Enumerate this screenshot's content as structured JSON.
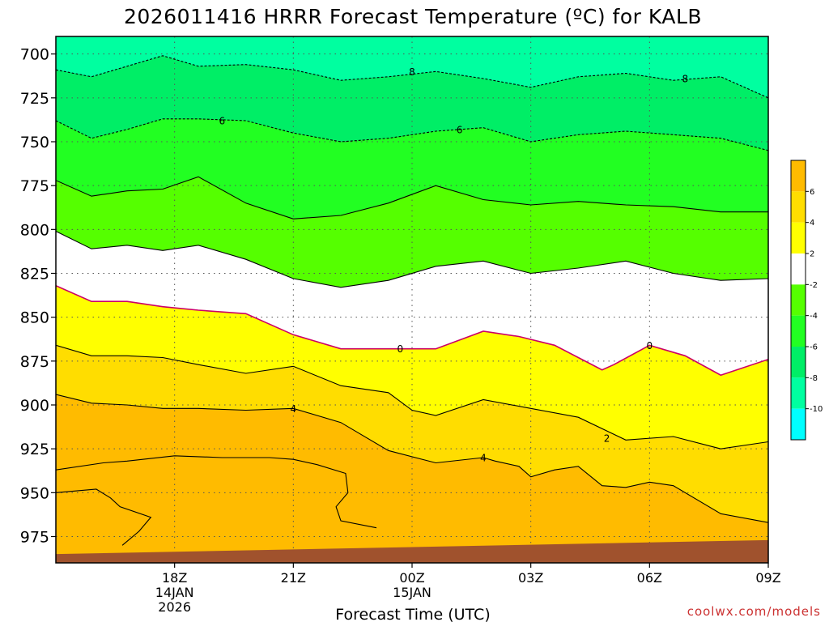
{
  "chart_data": {
    "type": "filled-contour",
    "title": "2026011416 HRRR Forecast Temperature (ºC) for KALB",
    "xlabel": "Forecast Time (UTC)",
    "ylabel": "",
    "y_axis": {
      "units": "hPa",
      "reversed": true,
      "range": [
        990,
        690
      ],
      "ticks": [
        "700",
        "725",
        "750",
        "775",
        "800",
        "825",
        "850",
        "875",
        "900",
        "925",
        "950",
        "975"
      ]
    },
    "x_axis": {
      "range_hours": [
        -3,
        27
      ],
      "ticks": [
        {
          "h": 2,
          "label": "18Z",
          "sub1": "14JAN",
          "sub2": "2026"
        },
        {
          "h": 7,
          "label": "21Z",
          "sub1": "",
          "sub2": ""
        },
        {
          "h": 12,
          "label": "00Z",
          "sub1": "15JAN",
          "sub2": ""
        },
        {
          "h": 17,
          "label": "03Z",
          "sub1": "",
          "sub2": ""
        },
        {
          "h": 22,
          "label": "06Z",
          "sub1": "",
          "sub2": ""
        },
        {
          "h": 27,
          "label": "09Z",
          "sub1": "",
          "sub2": ""
        }
      ]
    },
    "grid": true,
    "surface_color": "#a0522d",
    "surface": {
      "x": [
        -3,
        27
      ],
      "p": [
        985,
        977
      ]
    },
    "bands": [
      {
        "range": "<-10",
        "color": "#00ffff"
      },
      {
        "range": "-10..-8",
        "color": "#00ffa0"
      },
      {
        "range": "-8..-6",
        "color": "#00ee66"
      },
      {
        "range": "-6..-4",
        "color": "#22ff22"
      },
      {
        "range": "-4..-2",
        "color": "#55ff00"
      },
      {
        "range": "-2..2",
        "color": "#ffffff"
      },
      {
        "range": "2..4",
        "color": "#ffff00"
      },
      {
        "range": "4..6",
        "color": "#ffdd00"
      },
      {
        "range": ">6",
        "color": "#ffbb00"
      }
    ],
    "contours": [
      {
        "value": -8,
        "label": "8",
        "dashed": true,
        "color": "#000000",
        "x": [
          -3,
          -1.5,
          0,
          1.5,
          3,
          5,
          7,
          9,
          11,
          13,
          15,
          17,
          19,
          21,
          23,
          25,
          27
        ],
        "p": [
          709,
          713,
          707,
          701,
          707,
          706,
          709,
          715,
          713,
          710,
          714,
          719,
          713,
          711,
          715,
          713,
          725
        ],
        "labels": [
          {
            "x": 12,
            "p": 710
          },
          {
            "x": 23.5,
            "p": 714
          }
        ]
      },
      {
        "value": -6,
        "label": "6",
        "dashed": true,
        "color": "#000000",
        "x": [
          -3,
          -1.5,
          0,
          1.5,
          3,
          5,
          7,
          9,
          11,
          13,
          15,
          17,
          19,
          21,
          23,
          25,
          27
        ],
        "p": [
          738,
          748,
          743,
          737,
          737,
          738,
          745,
          750,
          748,
          744,
          742,
          750,
          746,
          744,
          746,
          748,
          755
        ],
        "labels": [
          {
            "x": 4,
            "p": 738
          },
          {
            "x": 14,
            "p": 743
          }
        ]
      },
      {
        "value": -4,
        "label": "",
        "dashed": false,
        "color": "#000000",
        "x": [
          -3,
          -1.5,
          0,
          1.5,
          3,
          5,
          7,
          9,
          11,
          13,
          15,
          17,
          19,
          21,
          23,
          25,
          27
        ],
        "p": [
          772,
          781,
          778,
          777,
          770,
          785,
          794,
          792,
          785,
          775,
          783,
          786,
          784,
          786,
          787,
          790,
          790
        ],
        "labels": []
      },
      {
        "value": -2,
        "label": "",
        "dashed": false,
        "color": "#000000",
        "x": [
          -3,
          -1.5,
          0,
          1.5,
          3,
          5,
          7,
          9,
          11,
          13,
          15,
          17,
          19,
          21,
          23,
          25,
          27
        ],
        "p": [
          801,
          811,
          809,
          812,
          809,
          817,
          828,
          833,
          829,
          821,
          818,
          825,
          822,
          818,
          825,
          829,
          828
        ],
        "labels": []
      },
      {
        "value": 0,
        "label": "0",
        "dashed": false,
        "color": "#cc0066",
        "x": [
          -3,
          -1.5,
          0,
          1.5,
          3,
          5,
          7,
          9,
          11,
          13,
          15,
          16.5,
          18,
          20,
          20.5,
          22,
          23.5,
          25,
          27
        ],
        "p": [
          832,
          841,
          841,
          844,
          846,
          848,
          860,
          868,
          868,
          868,
          858,
          861,
          866,
          880,
          877,
          866,
          872,
          883,
          874
        ],
        "labels": [
          {
            "x": 11.5,
            "p": 868
          },
          {
            "x": 22,
            "p": 866
          }
        ]
      },
      {
        "value": 2,
        "label": "2",
        "dashed": false,
        "color": "#000000",
        "x": [
          -3,
          -1.5,
          0,
          1.5,
          3,
          5,
          7,
          9,
          11,
          12,
          13,
          15,
          17,
          19,
          21,
          23,
          25,
          27
        ],
        "p": [
          866,
          872,
          872,
          873,
          877,
          882,
          878,
          889,
          893,
          903,
          906,
          897,
          902,
          907,
          920,
          918,
          925,
          921
        ],
        "labels": [
          {
            "x": 20.2,
            "p": 919
          }
        ]
      },
      {
        "value": 4,
        "label": "4",
        "dashed": false,
        "color": "#000000",
        "x": [
          -3,
          -1.5,
          0,
          1.5,
          3,
          5,
          7,
          9,
          11,
          13,
          15,
          15.5,
          16.5,
          17,
          18,
          19,
          20,
          21,
          22,
          23,
          25,
          27
        ],
        "p": [
          894,
          899,
          900,
          902,
          902,
          903,
          902,
          910,
          926,
          933,
          930,
          932,
          935,
          941,
          937,
          935,
          946,
          947,
          944,
          946,
          962,
          967
        ],
        "labels": [
          {
            "x": 7,
            "p": 902
          },
          {
            "x": 15,
            "p": 930
          }
        ]
      },
      {
        "value": 6,
        "label": "",
        "dashed": false,
        "color": "#000000",
        "x": [
          -3,
          -1,
          0,
          2,
          4,
          6,
          7,
          8,
          9.2,
          9.3,
          8.8,
          9,
          10.5
        ],
        "p": [
          937,
          933,
          932,
          929,
          930,
          930,
          931,
          934,
          939,
          950,
          958,
          966,
          970
        ],
        "labels": []
      },
      {
        "value": 6,
        "label": "",
        "dashed": false,
        "color": "#000000",
        "x": [
          -3,
          -1.3,
          -0.7,
          -0.3,
          1,
          0.5,
          -0.2
        ],
        "p": [
          950,
          948,
          953,
          958,
          964,
          972,
          980
        ],
        "labels": []
      }
    ],
    "colorbar": {
      "labels": [
        "6",
        "4",
        "2",
        "-2",
        "-4",
        "-6",
        "-8",
        "-10"
      ],
      "colors": [
        "#ffbb00",
        "#ffdd00",
        "#ffff00",
        "#ffffff",
        "#55ff00",
        "#22ff22",
        "#00ee66",
        "#00ffa0",
        "#00ffff"
      ]
    },
    "credit": "coolwx.com/models"
  }
}
